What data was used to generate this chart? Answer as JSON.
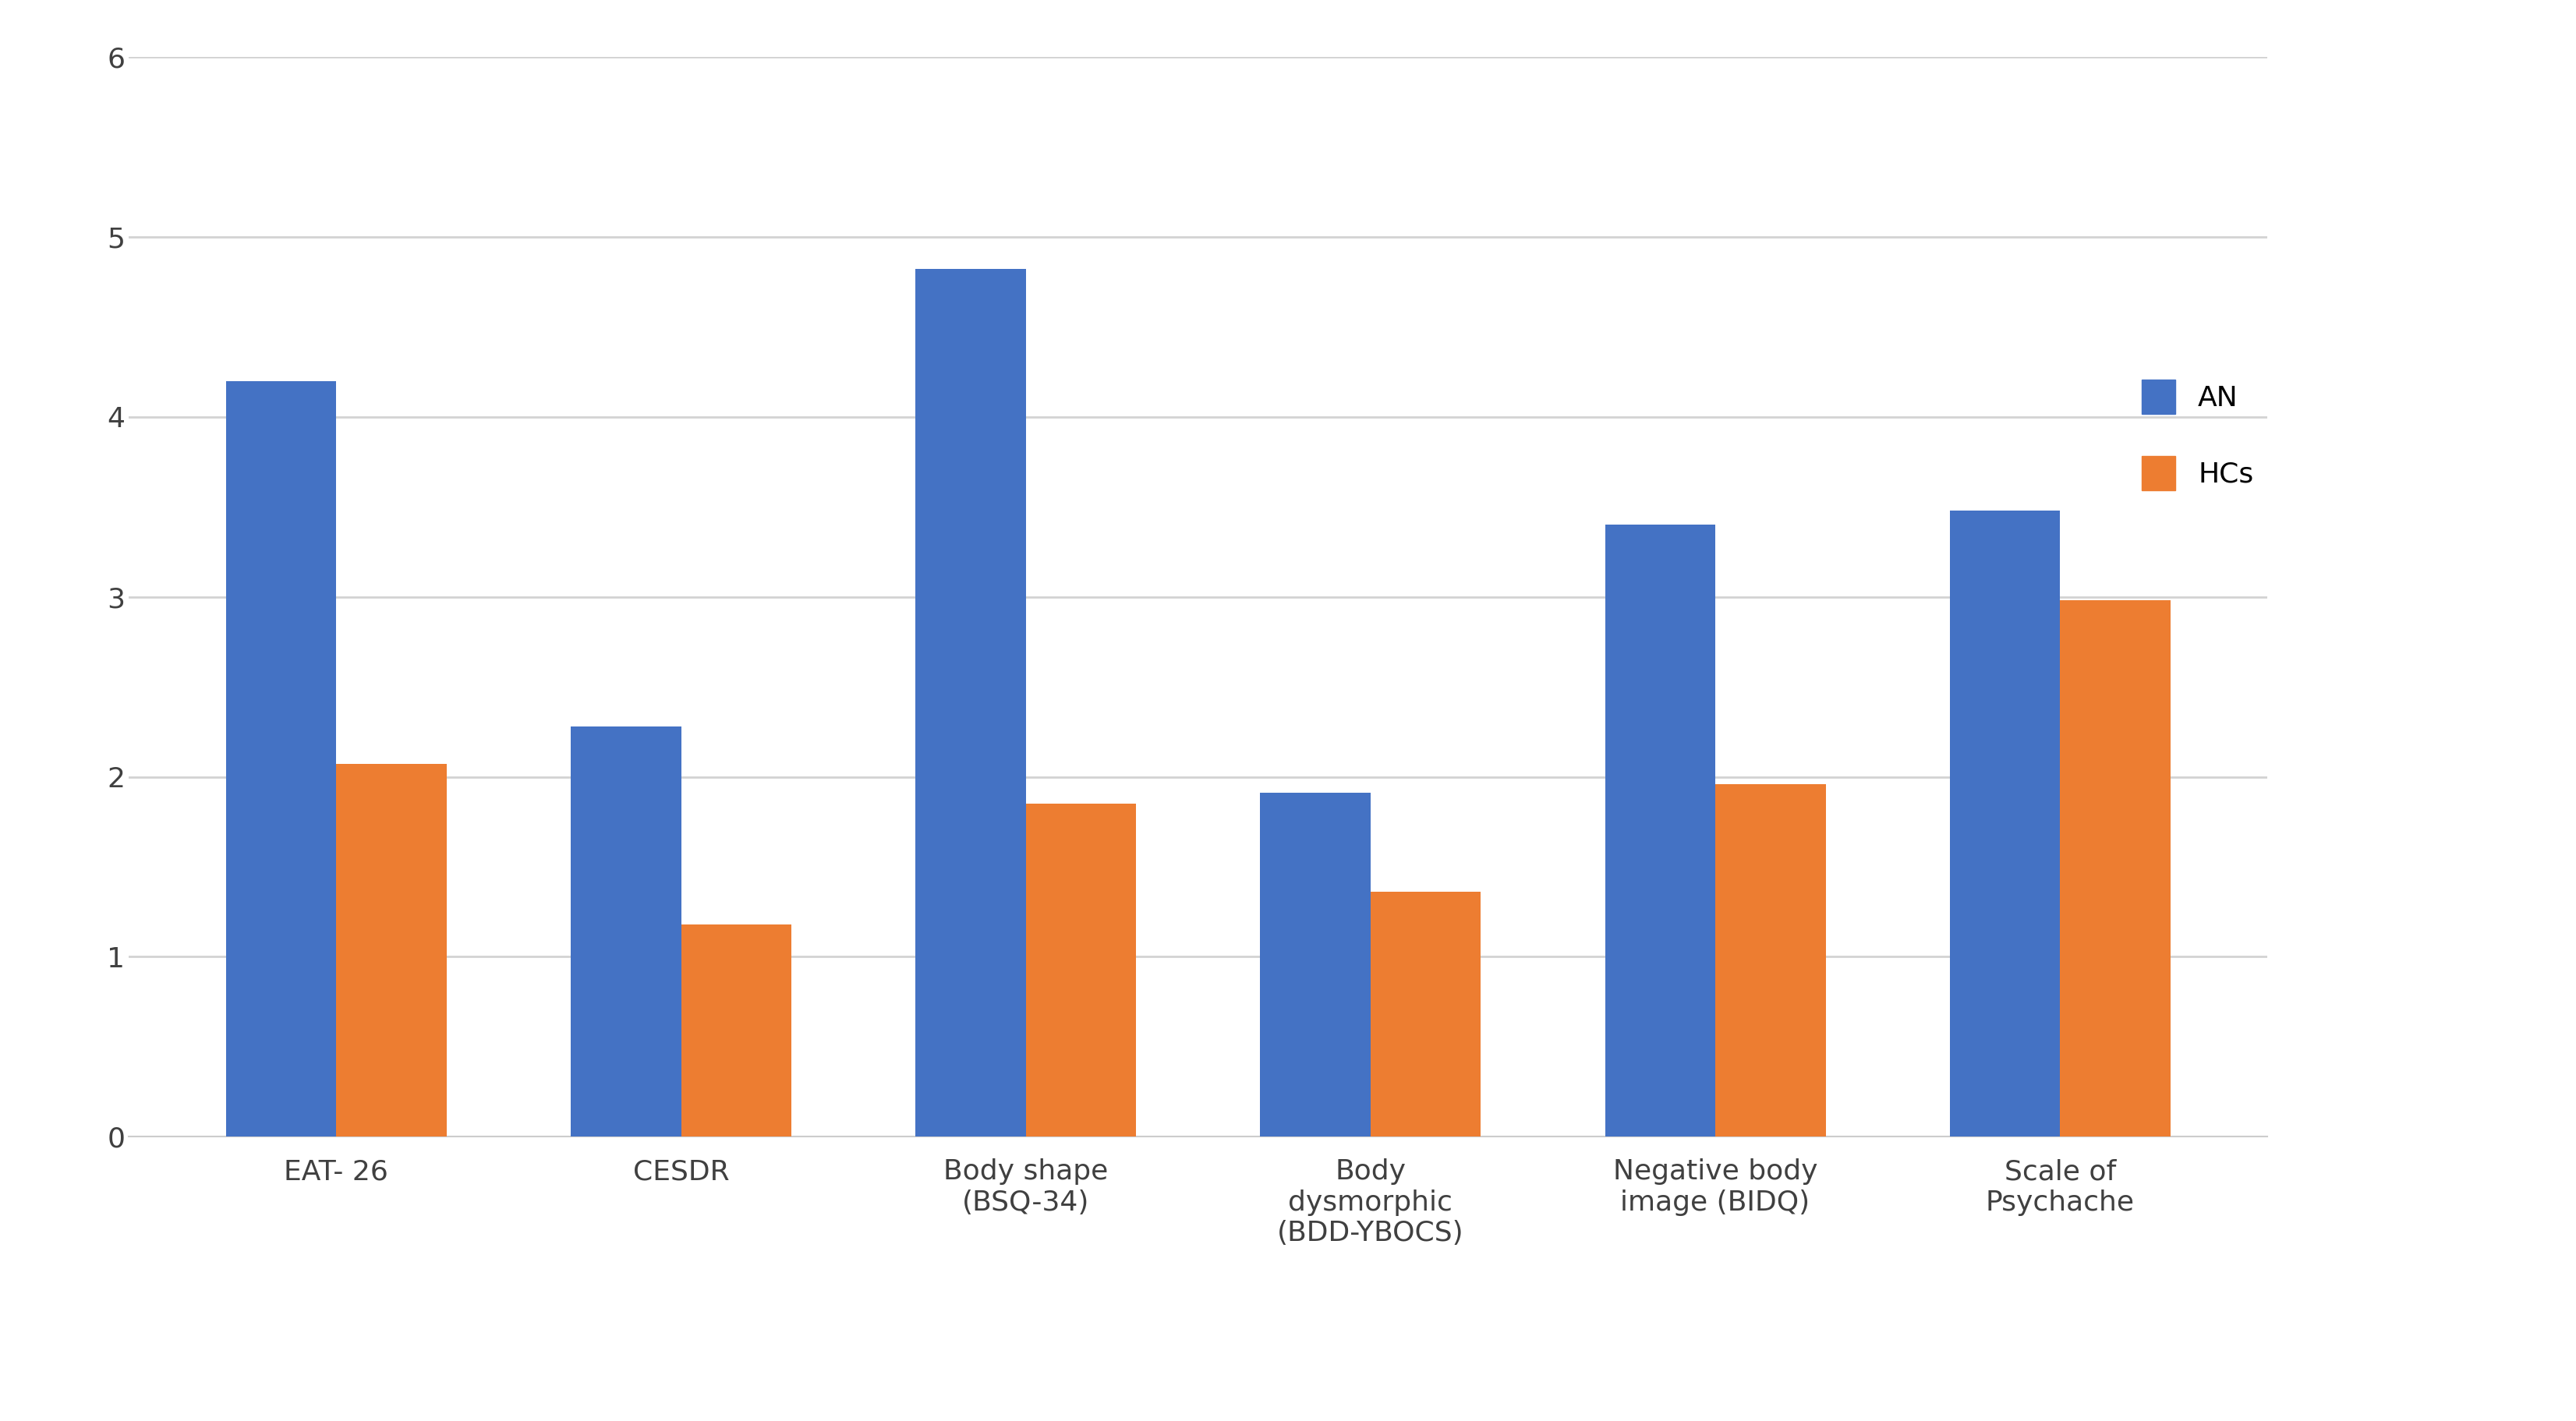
{
  "categories": [
    "EAT- 26",
    "CESDR",
    "Body shape\n(BSQ-34)",
    "Body\ndysmorphic\n(BDD-YBOCS)",
    "Negative body\nimage (BIDQ)",
    "Scale of\nPsychache"
  ],
  "AN_values": [
    4.2,
    2.28,
    4.82,
    1.91,
    3.4,
    3.48
  ],
  "HCs_values": [
    2.07,
    1.18,
    1.85,
    1.36,
    1.96,
    2.98
  ],
  "AN_color": "#4472C4",
  "HCs_color": "#ED7D31",
  "ylim": [
    0,
    6
  ],
  "yticks": [
    0,
    1,
    2,
    3,
    4,
    5,
    6
  ],
  "legend_AN": "AN",
  "legend_HCs": "HCs",
  "background_color": "#FFFFFF",
  "grid_color": "#D3D3D3",
  "bar_width": 0.32,
  "tick_fontsize": 26,
  "legend_fontsize": 26
}
